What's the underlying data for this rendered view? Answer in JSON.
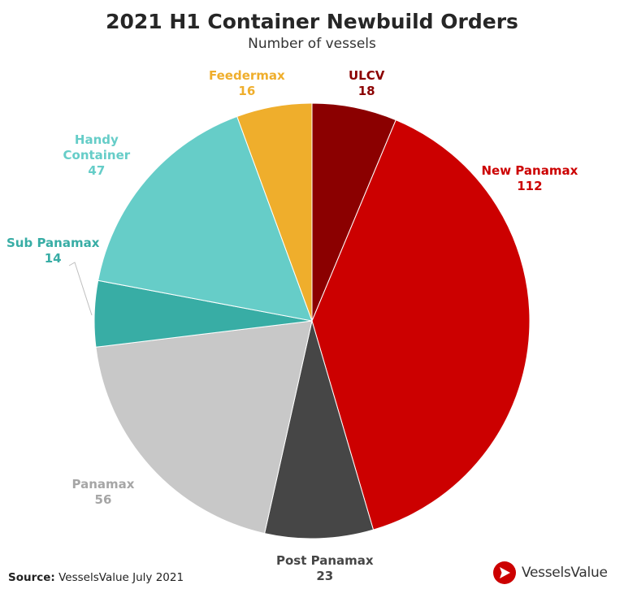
{
  "chart_data": {
    "type": "pie",
    "title": "2021 H1 Container Newbuild Orders",
    "subtitle": "Number of vessels",
    "slices": [
      {
        "name": "ULCV",
        "name_lines": [
          "ULCV"
        ],
        "value": 18,
        "color": "#8B0000"
      },
      {
        "name": "New Panamax",
        "name_lines": [
          "New Panamax"
        ],
        "value": 112,
        "color": "#CC0000"
      },
      {
        "name": "Post Panamax",
        "name_lines": [
          "Post Panamax"
        ],
        "value": 23,
        "color": "#464646"
      },
      {
        "name": "Panamax",
        "name_lines": [
          "Panamax"
        ],
        "value": 56,
        "color": "#C8C8C8",
        "label_color": "#A6A6A6"
      },
      {
        "name": "Sub Panamax",
        "name_lines": [
          "Sub Panamax"
        ],
        "value": 14,
        "color": "#38ADA5"
      },
      {
        "name": "Handy Container",
        "name_lines": [
          "Handy",
          "Container"
        ],
        "value": 47,
        "color": "#66CDC8"
      },
      {
        "name": "Feedermax",
        "name_lines": [
          "Feedermax"
        ],
        "value": 16,
        "color": "#EFAE2C"
      }
    ]
  },
  "source": {
    "label": "Source:",
    "text": "VesselsValue July 2021"
  },
  "logo": {
    "text": "VesselsValue",
    "color": "#CC0000"
  }
}
